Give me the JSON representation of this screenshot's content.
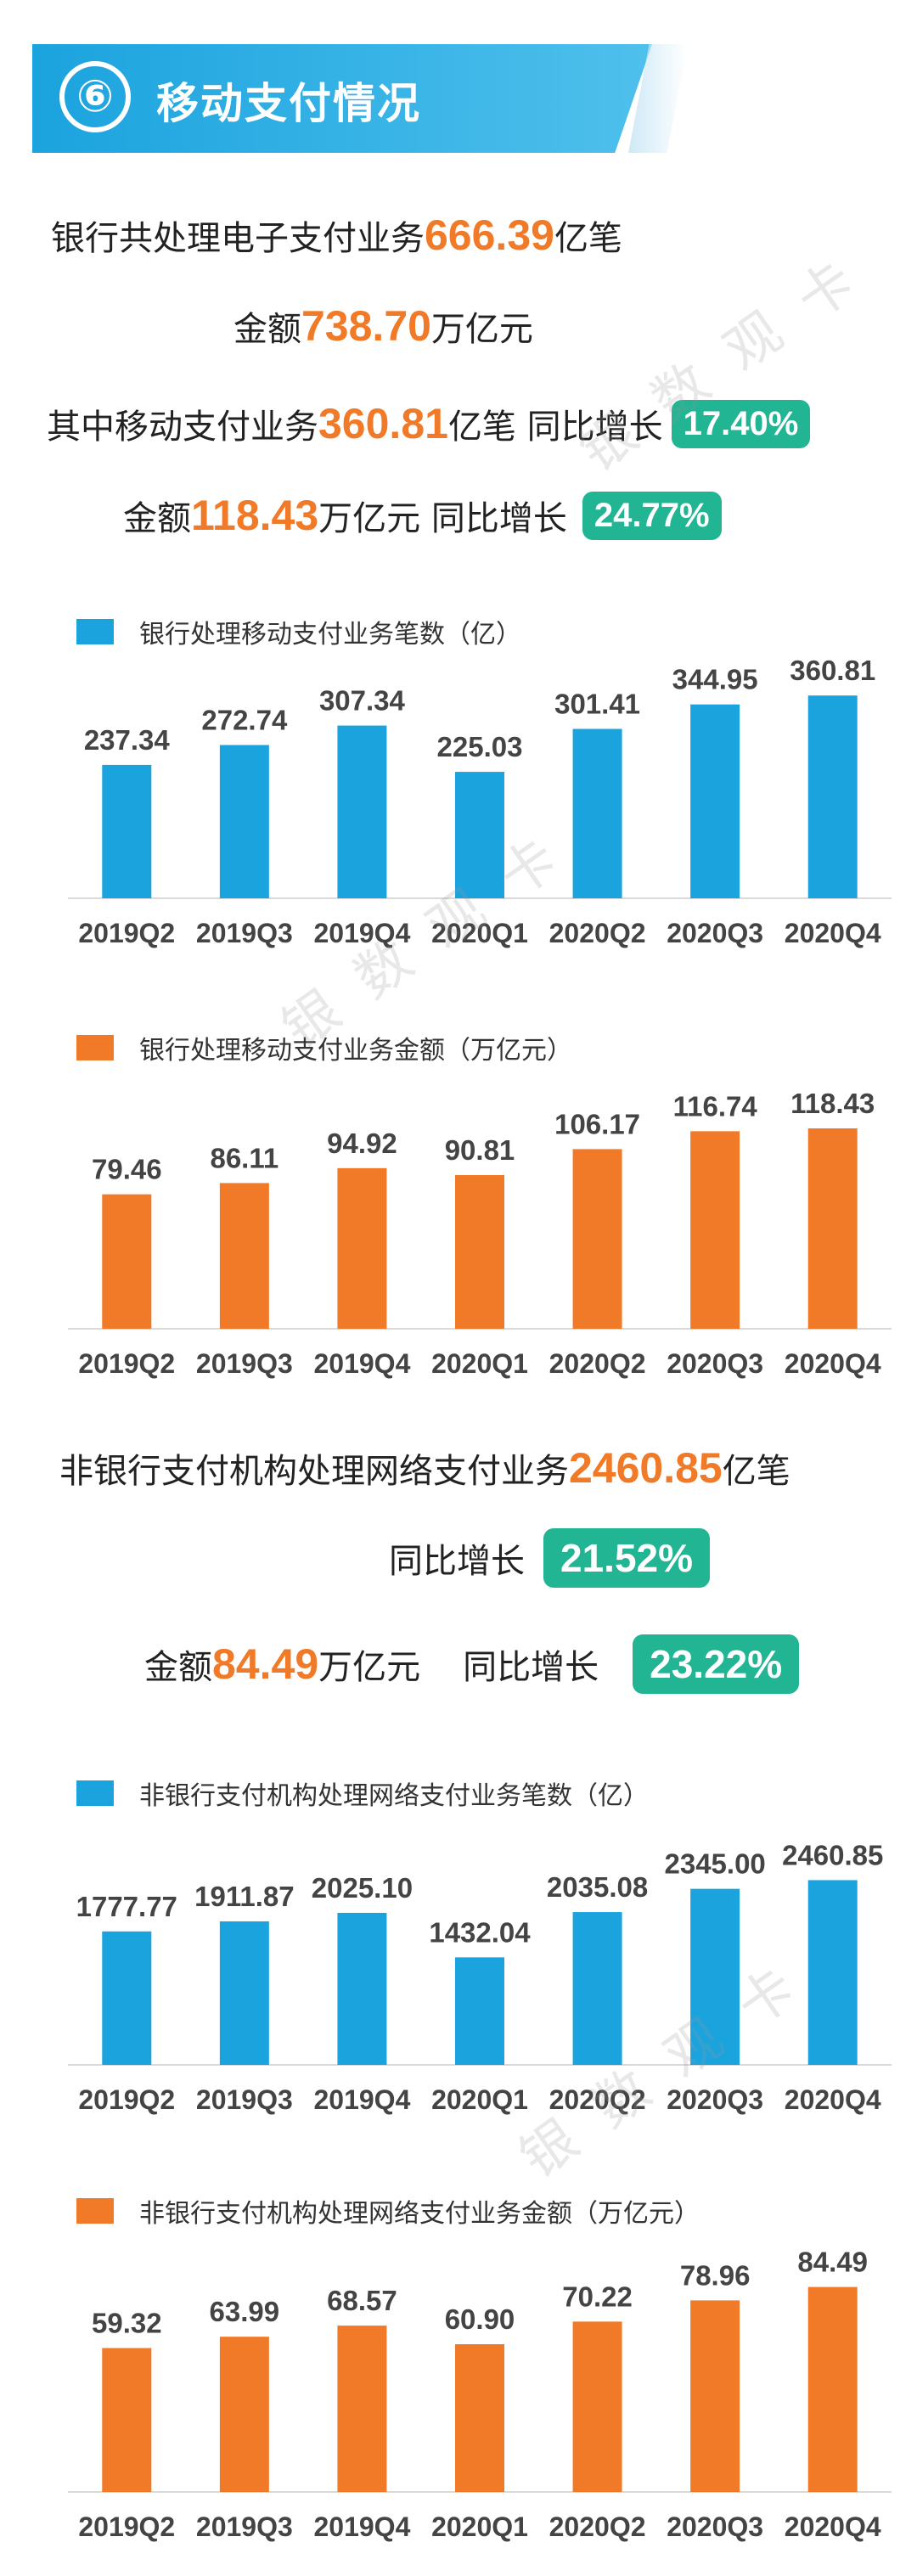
{
  "header": {
    "number": "⑥",
    "title": "移动支付情况"
  },
  "summary_bank": {
    "line1_prefix": "银行共处理电子支付业务",
    "line1_num": "666.39",
    "line1_suffix": "亿笔",
    "line2_prefix": "金额",
    "line2_num": "738.70",
    "line2_suffix": "万亿元",
    "line3_prefix": "其中移动支付业务",
    "line3_num": "360.81",
    "line3_suffix": "亿笔 同比增长",
    "line3_pill": "17.40%",
    "line4_prefix": "金额",
    "line4_num": "118.43",
    "line4_suffix": "万亿元 同比增长",
    "line4_pill": "24.77%"
  },
  "summary_nonbank": {
    "line1_prefix": "非银行支付机构处理网络支付业务",
    "line1_num": "2460.85",
    "line1_suffix": "亿笔",
    "line2_label": "同比增长",
    "line2_pill": "21.52%",
    "line3_prefix": "金额",
    "line3_num": "84.49",
    "line3_suffix": "万亿元",
    "line3_label": "同比增长",
    "line3_pill": "23.22%"
  },
  "watermark": {
    "text": "银数观卡"
  },
  "colors": {
    "blue": "#1ba3de",
    "orange": "#f07a27",
    "green": "#21b594"
  },
  "chart_data": [
    {
      "type": "bar",
      "legend": "银行处理移动支付业务笔数（亿）",
      "categories": [
        "2019Q2",
        "2019Q3",
        "2019Q4",
        "2020Q1",
        "2020Q2",
        "2020Q3",
        "2020Q4"
      ],
      "values": [
        237.34,
        272.74,
        307.34,
        225.03,
        301.41,
        344.95,
        360.81
      ],
      "labels": [
        "237.34",
        "272.74",
        "307.34",
        "225.03",
        "301.41",
        "344.95",
        "360.81"
      ],
      "ylim": [
        0,
        420
      ],
      "color": "#1ba3de"
    },
    {
      "type": "bar",
      "legend": "银行处理移动支付业务金额（万亿元）",
      "categories": [
        "2019Q2",
        "2019Q3",
        "2019Q4",
        "2020Q1",
        "2020Q2",
        "2020Q3",
        "2020Q4"
      ],
      "values": [
        79.46,
        86.11,
        94.92,
        90.81,
        106.17,
        116.74,
        118.43
      ],
      "labels": [
        "79.46",
        "86.11",
        "94.92",
        "90.81",
        "106.17",
        "116.74",
        "118.43"
      ],
      "ylim": [
        0,
        138
      ],
      "color": "#f07a27"
    },
    {
      "type": "bar",
      "legend": "非银行支付机构处理网络支付业务笔数（亿）",
      "categories": [
        "2019Q2",
        "2019Q3",
        "2019Q4",
        "2020Q1",
        "2020Q2",
        "2020Q3",
        "2020Q4"
      ],
      "values": [
        1777.77,
        1911.87,
        2025.1,
        1432.04,
        2035.08,
        2345.0,
        2460.85
      ],
      "labels": [
        "1777.77",
        "1911.87",
        "2025.10",
        "1432.04",
        "2035.08",
        "2345.00",
        "2460.85"
      ],
      "ylim": [
        0,
        2850
      ],
      "color": "#1ba3de"
    },
    {
      "type": "bar",
      "legend": "非银行支付机构处理网络支付业务金额（万亿元）",
      "categories": [
        "2019Q2",
        "2019Q3",
        "2019Q4",
        "2020Q1",
        "2020Q2",
        "2020Q3",
        "2020Q4"
      ],
      "values": [
        59.32,
        63.99,
        68.57,
        60.9,
        70.22,
        78.96,
        84.49
      ],
      "labels": [
        "59.32",
        "63.99",
        "68.57",
        "60.90",
        "70.22",
        "78.96",
        "84.49"
      ],
      "ylim": [
        0,
        98
      ],
      "color": "#f07a27"
    }
  ]
}
